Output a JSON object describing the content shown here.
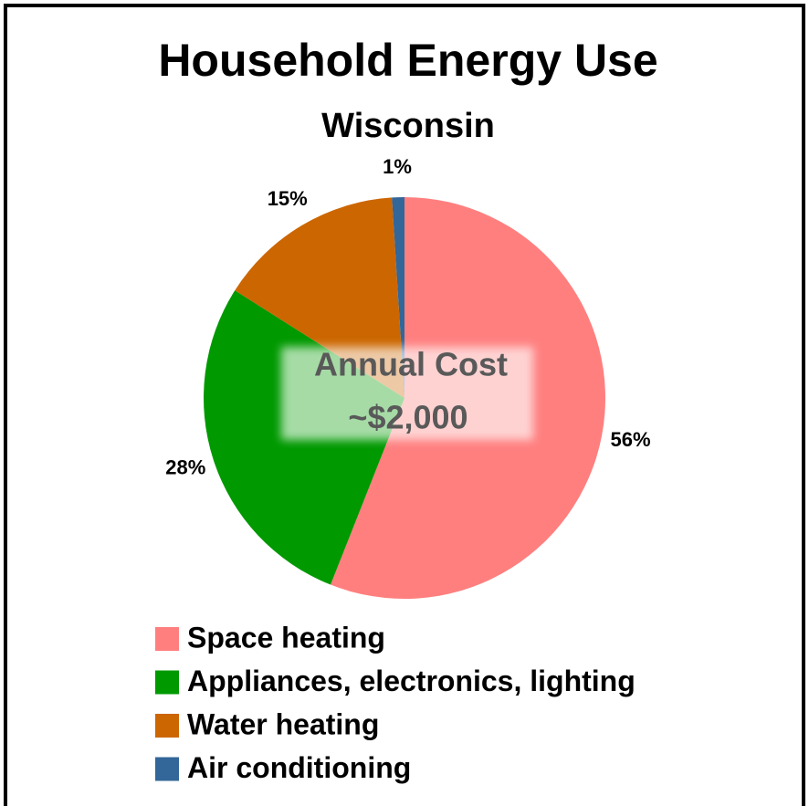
{
  "chart_data": {
    "type": "pie",
    "title": "Household Energy Use",
    "subtitle": "Wisconsin",
    "annotation": [
      "Annual Cost",
      "~$2,000"
    ],
    "categories": [
      "Space heating",
      "Appliances, electronics, lighting",
      "Water heating",
      "Air conditioning"
    ],
    "values": [
      56,
      28,
      15,
      1
    ],
    "value_labels": [
      "56%",
      "28%",
      "15%",
      "1%"
    ],
    "colors": [
      "#ff7f7f",
      "#009900",
      "#cc6600",
      "#336699"
    ],
    "legend": "bottom"
  }
}
